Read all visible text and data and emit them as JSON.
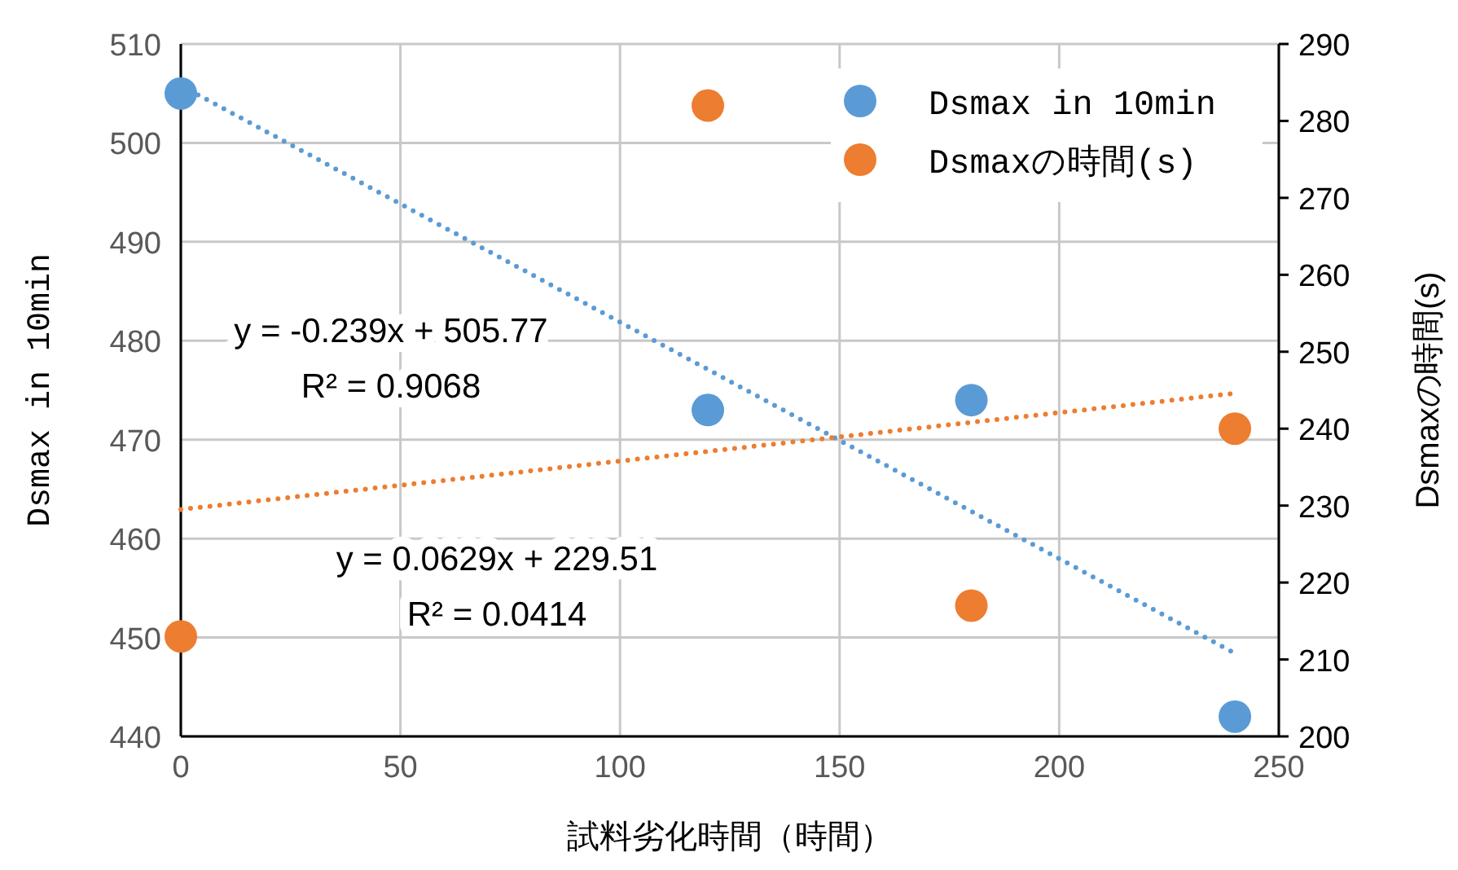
{
  "chart_data": {
    "type": "scatter",
    "xlabel": "試料劣化時間（時間）",
    "ylabel": "Dsmax in 10min",
    "y2label": "Dsmaxの時間(s)",
    "xlim": [
      0,
      250
    ],
    "xticks": [
      0,
      50,
      100,
      150,
      200,
      250
    ],
    "ylim": [
      440,
      510
    ],
    "yticks": [
      440,
      450,
      460,
      470,
      480,
      490,
      500,
      510
    ],
    "y2lim": [
      200,
      290
    ],
    "y2ticks": [
      200,
      210,
      220,
      230,
      240,
      250,
      260,
      270,
      280,
      290
    ],
    "grid": true,
    "legend": "top right",
    "marker": "circle",
    "annotations": [
      "y = -0.239x + 505.77\nR² = 0.9068",
      "y = 0.0629x + 229.51\nR² = 0.0414"
    ],
    "series": [
      {
        "name": "Dsmax in 10min",
        "color": "#5b9bd5",
        "x": [
          0,
          120,
          180,
          240
        ],
        "values": [
          505,
          473,
          474,
          442
        ]
      },
      {
        "name": "Dsmaxの時間(s)",
        "color": "#ed7d31",
        "axis": "y2",
        "x": [
          0,
          120,
          180,
          240
        ],
        "values": [
          213,
          282,
          217,
          240
        ]
      },
      {
        "type": "line",
        "color": "#5b9bd5",
        "line_style": "dotted",
        "marker": "none",
        "x": [
          0,
          240
        ],
        "values": [
          505.8,
          448.4
        ]
      },
      {
        "type": "line",
        "color": "#ed7d31",
        "line_style": "dotted",
        "marker": "none",
        "axis": "y2",
        "x": [
          0,
          240
        ],
        "values": [
          229.5,
          244.6
        ]
      }
    ]
  }
}
